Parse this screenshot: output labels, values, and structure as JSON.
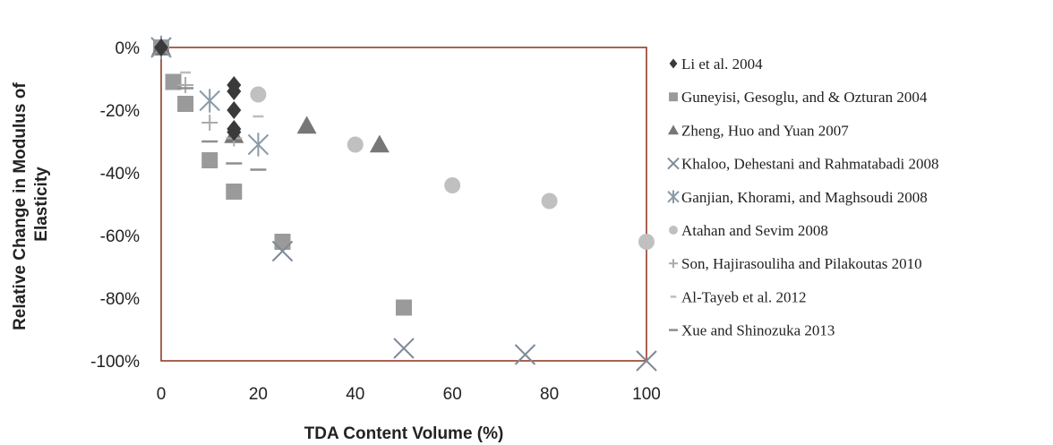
{
  "chart_data": {
    "type": "scatter",
    "xlabel": "TDA Content Volume (%)",
    "ylabel_lines": [
      "Relative Change in Modulus of",
      "Elasticity"
    ],
    "xlim": [
      0,
      100
    ],
    "ylim": [
      -100,
      0
    ],
    "x_ticks": [
      0,
      20,
      40,
      60,
      80,
      100
    ],
    "y_ticks": [
      0,
      -20,
      -40,
      -60,
      -80,
      -100
    ],
    "y_tick_labels": [
      "0%",
      "-20%",
      "-40%",
      "-60%",
      "-80%",
      "-100%"
    ],
    "grid": false,
    "legend_position": "right",
    "series": [
      {
        "name": "Li et al. 2004",
        "marker": "diamond",
        "color": "#3a3a3a",
        "x": [
          0,
          15,
          15,
          15,
          15,
          15
        ],
        "y": [
          0,
          -12,
          -14,
          -20,
          -26,
          -27
        ]
      },
      {
        "name": "Guneyisi, Gesoglu, and & Ozturan 2004",
        "marker": "square",
        "color": "#9a9a9a",
        "x": [
          0,
          2.5,
          5,
          10,
          15,
          25,
          50
        ],
        "y": [
          0,
          -11,
          -18,
          -36,
          -46,
          -62,
          -83
        ]
      },
      {
        "name": "Zheng, Huo and Yuan 2007",
        "marker": "triangle",
        "color": "#777777",
        "x": [
          0,
          15,
          30,
          45
        ],
        "y": [
          0,
          -28,
          -25,
          -31
        ]
      },
      {
        "name": "Khaloo, Dehestani and Rahmatabadi 2008",
        "marker": "x",
        "color": "#7f8a96",
        "x": [
          0,
          25,
          50,
          75,
          100
        ],
        "y": [
          0,
          -65,
          -96,
          -98,
          -100
        ]
      },
      {
        "name": "Ganjian, Khorami, and Maghsoudi 2008",
        "marker": "star",
        "color": "#8a9aa8",
        "x": [
          0,
          10,
          20
        ],
        "y": [
          0,
          -17,
          -31
        ]
      },
      {
        "name": "Atahan and Sevim 2008",
        "marker": "circle",
        "color": "#c0c0c0",
        "x": [
          20,
          40,
          60,
          80,
          100
        ],
        "y": [
          -15,
          -31,
          -44,
          -49,
          -62
        ]
      },
      {
        "name": "Son, Hajirasouliha and Pilakoutas 2010",
        "marker": "plus",
        "color": "#aaaaaa",
        "x": [
          0,
          5,
          10,
          15
        ],
        "y": [
          0,
          -12,
          -24,
          -29
        ]
      },
      {
        "name": "Al-Tayeb et al. 2012",
        "marker": "dash-small",
        "color": "#bdbdbd",
        "x": [
          5,
          20
        ],
        "y": [
          -8,
          -22
        ]
      },
      {
        "name": "Xue and Shinozuka 2013",
        "marker": "dash",
        "color": "#8f8f8f",
        "x": [
          5,
          10,
          15,
          20
        ],
        "y": [
          -13,
          -30,
          -37,
          -39
        ]
      }
    ]
  }
}
